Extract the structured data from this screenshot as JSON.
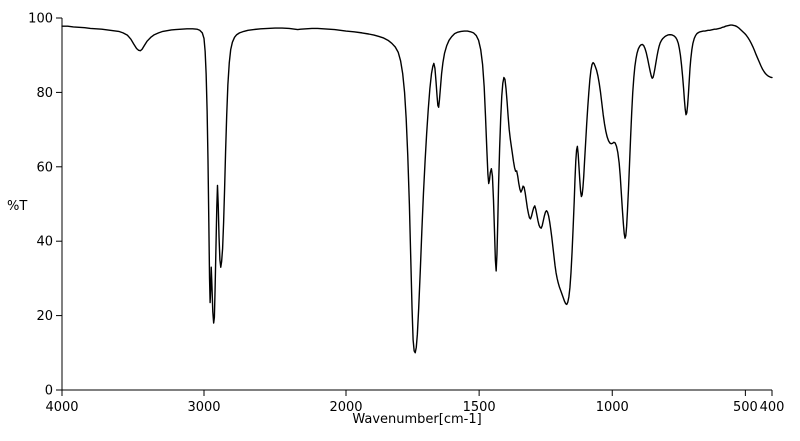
{
  "chart_data": {
    "type": "line",
    "title": "",
    "xlabel": "Wavenumber[cm-1]",
    "ylabel": "%T",
    "line_color": "#000000",
    "background_color": "#ffffff",
    "grid": false,
    "legend": "none",
    "x_axis": {
      "min": 400,
      "max": 4000,
      "reversed": true,
      "split": {
        "at": 2000,
        "left_fraction": 0.4
      },
      "ticks": [
        4000,
        3000,
        2000,
        1500,
        1000,
        500,
        400
      ]
    },
    "y_axis": {
      "min": 0,
      "max": 100,
      "ticks": [
        0,
        20,
        40,
        60,
        80,
        100
      ]
    },
    "points": [
      [
        4000,
        97.8
      ],
      [
        3960,
        97.8
      ],
      [
        3920,
        97.6
      ],
      [
        3880,
        97.5
      ],
      [
        3840,
        97.4
      ],
      [
        3800,
        97.2
      ],
      [
        3760,
        97.1
      ],
      [
        3720,
        97.0
      ],
      [
        3680,
        96.8
      ],
      [
        3640,
        96.6
      ],
      [
        3600,
        96.4
      ],
      [
        3570,
        96.0
      ],
      [
        3540,
        95.4
      ],
      [
        3515,
        94.3
      ],
      [
        3495,
        93.0
      ],
      [
        3475,
        91.8
      ],
      [
        3460,
        91.3
      ],
      [
        3448,
        91.2
      ],
      [
        3436,
        91.6
      ],
      [
        3420,
        92.6
      ],
      [
        3400,
        93.8
      ],
      [
        3375,
        94.8
      ],
      [
        3350,
        95.5
      ],
      [
        3320,
        96.0
      ],
      [
        3290,
        96.4
      ],
      [
        3260,
        96.6
      ],
      [
        3230,
        96.8
      ],
      [
        3200,
        96.9
      ],
      [
        3160,
        97.0
      ],
      [
        3120,
        97.1
      ],
      [
        3080,
        97.1
      ],
      [
        3050,
        97.0
      ],
      [
        3030,
        96.7
      ],
      [
        3012,
        96.0
      ],
      [
        3000,
        94.5
      ],
      [
        2992,
        91.0
      ],
      [
        2985,
        85.0
      ],
      [
        2978,
        75.0
      ],
      [
        2972,
        62.0
      ],
      [
        2966,
        45.0
      ],
      [
        2961,
        30.0
      ],
      [
        2957,
        23.5
      ],
      [
        2953,
        27.0
      ],
      [
        2949,
        33.0
      ],
      [
        2944,
        28.0
      ],
      [
        2938,
        21.0
      ],
      [
        2932,
        18.0
      ],
      [
        2927,
        19.5
      ],
      [
        2922,
        27.0
      ],
      [
        2916,
        38.0
      ],
      [
        2910,
        49.0
      ],
      [
        2905,
        55.0
      ],
      [
        2900,
        50.0
      ],
      [
        2894,
        41.0
      ],
      [
        2888,
        35.0
      ],
      [
        2882,
        33.0
      ],
      [
        2876,
        34.5
      ],
      [
        2869,
        38.0
      ],
      [
        2862,
        45.0
      ],
      [
        2855,
        54.0
      ],
      [
        2848,
        64.0
      ],
      [
        2840,
        74.0
      ],
      [
        2832,
        82.0
      ],
      [
        2822,
        88.0
      ],
      [
        2812,
        91.5
      ],
      [
        2800,
        93.5
      ],
      [
        2785,
        94.8
      ],
      [
        2770,
        95.5
      ],
      [
        2750,
        96.0
      ],
      [
        2720,
        96.4
      ],
      [
        2690,
        96.7
      ],
      [
        2650,
        96.9
      ],
      [
        2600,
        97.1
      ],
      [
        2550,
        97.2
      ],
      [
        2500,
        97.3
      ],
      [
        2450,
        97.3
      ],
      [
        2400,
        97.2
      ],
      [
        2360,
        97.0
      ],
      [
        2340,
        96.9
      ],
      [
        2320,
        97.0
      ],
      [
        2280,
        97.1
      ],
      [
        2240,
        97.2
      ],
      [
        2200,
        97.2
      ],
      [
        2160,
        97.1
      ],
      [
        2120,
        97.0
      ],
      [
        2080,
        96.9
      ],
      [
        2040,
        96.7
      ],
      [
        2000,
        96.5
      ],
      [
        1970,
        96.3
      ],
      [
        1940,
        96.0
      ],
      [
        1915,
        95.7
      ],
      [
        1895,
        95.4
      ],
      [
        1875,
        95.0
      ],
      [
        1858,
        94.6
      ],
      [
        1842,
        94.0
      ],
      [
        1828,
        93.2
      ],
      [
        1815,
        92.2
      ],
      [
        1804,
        90.8
      ],
      [
        1795,
        88.5
      ],
      [
        1787,
        85.0
      ],
      [
        1780,
        80.0
      ],
      [
        1774,
        73.0
      ],
      [
        1768,
        63.0
      ],
      [
        1762,
        50.0
      ],
      [
        1757,
        36.0
      ],
      [
        1752,
        22.0
      ],
      [
        1748,
        13.5
      ],
      [
        1744,
        10.5
      ],
      [
        1740,
        10.0
      ],
      [
        1736,
        11.5
      ],
      [
        1732,
        15.0
      ],
      [
        1727,
        22.0
      ],
      [
        1721,
        32.0
      ],
      [
        1715,
        43.0
      ],
      [
        1709,
        53.0
      ],
      [
        1703,
        61.5
      ],
      [
        1697,
        69.0
      ],
      [
        1691,
        75.5
      ],
      [
        1685,
        81.0
      ],
      [
        1679,
        85.0
      ],
      [
        1674,
        87.0
      ],
      [
        1670,
        87.8
      ],
      [
        1666,
        86.5
      ],
      [
        1662,
        83.0
      ],
      [
        1658,
        79.0
      ],
      [
        1655,
        76.5
      ],
      [
        1652,
        76.0
      ],
      [
        1649,
        78.0
      ],
      [
        1645,
        81.5
      ],
      [
        1641,
        85.0
      ],
      [
        1636,
        88.0
      ],
      [
        1630,
        90.5
      ],
      [
        1622,
        92.5
      ],
      [
        1613,
        94.0
      ],
      [
        1603,
        95.0
      ],
      [
        1592,
        95.8
      ],
      [
        1580,
        96.2
      ],
      [
        1568,
        96.4
      ],
      [
        1556,
        96.5
      ],
      [
        1544,
        96.5
      ],
      [
        1532,
        96.3
      ],
      [
        1521,
        96.0
      ],
      [
        1511,
        95.3
      ],
      [
        1502,
        94.0
      ],
      [
        1494,
        91.5
      ],
      [
        1487,
        87.5
      ],
      [
        1481,
        81.5
      ],
      [
        1476,
        73.5
      ],
      [
        1471,
        64.5
      ],
      [
        1467,
        58.0
      ],
      [
        1464,
        55.5
      ],
      [
        1461,
        56.5
      ],
      [
        1458,
        58.5
      ],
      [
        1454,
        59.5
      ],
      [
        1450,
        57.5
      ],
      [
        1446,
        51.0
      ],
      [
        1442,
        42.0
      ],
      [
        1439,
        35.0
      ],
      [
        1436,
        32.0
      ],
      [
        1433,
        36.5
      ],
      [
        1430,
        45.0
      ],
      [
        1427,
        55.0
      ],
      [
        1423,
        65.0
      ],
      [
        1419,
        73.0
      ],
      [
        1415,
        79.0
      ],
      [
        1411,
        82.5
      ],
      [
        1407,
        84.0
      ],
      [
        1403,
        83.5
      ],
      [
        1399,
        81.0
      ],
      [
        1395,
        77.5
      ],
      [
        1391,
        73.5
      ],
      [
        1387,
        70.0
      ],
      [
        1383,
        67.5
      ],
      [
        1379,
        65.5
      ],
      [
        1375,
        63.5
      ],
      [
        1371,
        61.5
      ],
      [
        1367,
        59.8
      ],
      [
        1363,
        58.8
      ],
      [
        1359,
        58.9
      ],
      [
        1355,
        57.5
      ],
      [
        1351,
        55.5
      ],
      [
        1347,
        54.0
      ],
      [
        1343,
        53.2
      ],
      [
        1339,
        53.8
      ],
      [
        1335,
        54.8
      ],
      [
        1331,
        54.5
      ],
      [
        1327,
        53.0
      ],
      [
        1323,
        51.0
      ],
      [
        1319,
        49.0
      ],
      [
        1315,
        47.5
      ],
      [
        1311,
        46.3
      ],
      [
        1307,
        46.0
      ],
      [
        1303,
        46.8
      ],
      [
        1299,
        48.0
      ],
      [
        1295,
        49.0
      ],
      [
        1291,
        49.5
      ],
      [
        1287,
        48.5
      ],
      [
        1283,
        47.0
      ],
      [
        1279,
        45.5
      ],
      [
        1275,
        44.3
      ],
      [
        1271,
        43.7
      ],
      [
        1267,
        43.5
      ],
      [
        1263,
        44.2
      ],
      [
        1259,
        45.5
      ],
      [
        1255,
        46.8
      ],
      [
        1251,
        47.8
      ],
      [
        1247,
        48.2
      ],
      [
        1243,
        47.8
      ],
      [
        1239,
        46.8
      ],
      [
        1235,
        45.2
      ],
      [
        1231,
        43.2
      ],
      [
        1227,
        41.0
      ],
      [
        1223,
        38.5
      ],
      [
        1219,
        36.0
      ],
      [
        1215,
        33.5
      ],
      [
        1211,
        31.5
      ],
      [
        1207,
        30.0
      ],
      [
        1203,
        28.8
      ],
      [
        1199,
        27.8
      ],
      [
        1195,
        27.0
      ],
      [
        1191,
        26.2
      ],
      [
        1187,
        25.4
      ],
      [
        1183,
        24.6
      ],
      [
        1179,
        23.8
      ],
      [
        1175,
        23.2
      ],
      [
        1171,
        23.0
      ],
      [
        1167,
        23.6
      ],
      [
        1163,
        25.0
      ],
      [
        1159,
        27.5
      ],
      [
        1155,
        31.5
      ],
      [
        1151,
        37.0
      ],
      [
        1147,
        43.5
      ],
      [
        1143,
        50.5
      ],
      [
        1140,
        56.5
      ],
      [
        1137,
        61.5
      ],
      [
        1134,
        64.5
      ],
      [
        1131,
        65.5
      ],
      [
        1128,
        63.5
      ],
      [
        1125,
        60.0
      ],
      [
        1122,
        56.5
      ],
      [
        1119,
        53.5
      ],
      [
        1116,
        52.0
      ],
      [
        1113,
        52.5
      ],
      [
        1110,
        54.5
      ],
      [
        1107,
        57.5
      ],
      [
        1104,
        61.5
      ],
      [
        1100,
        66.5
      ],
      [
        1096,
        71.5
      ],
      [
        1092,
        76.0
      ],
      [
        1088,
        80.0
      ],
      [
        1084,
        83.5
      ],
      [
        1080,
        86.0
      ],
      [
        1076,
        87.5
      ],
      [
        1072,
        88.0
      ],
      [
        1068,
        87.7
      ],
      [
        1064,
        87.0
      ],
      [
        1059,
        86.0
      ],
      [
        1054,
        84.5
      ],
      [
        1049,
        82.5
      ],
      [
        1044,
        80.0
      ],
      [
        1039,
        77.0
      ],
      [
        1034,
        74.0
      ],
      [
        1029,
        71.5
      ],
      [
        1024,
        69.5
      ],
      [
        1019,
        68.0
      ],
      [
        1014,
        67.0
      ],
      [
        1009,
        66.4
      ],
      [
        1004,
        66.2
      ],
      [
        999,
        66.3
      ],
      [
        994,
        66.6
      ],
      [
        989,
        66.4
      ],
      [
        984,
        65.5
      ],
      [
        979,
        63.8
      ],
      [
        974,
        61.0
      ],
      [
        970,
        57.5
      ],
      [
        966,
        53.0
      ],
      [
        962,
        48.5
      ],
      [
        958,
        44.5
      ],
      [
        955,
        42.0
      ],
      [
        952,
        40.8
      ],
      [
        949,
        41.5
      ],
      [
        946,
        44.0
      ],
      [
        943,
        48.0
      ],
      [
        939,
        54.0
      ],
      [
        935,
        61.0
      ],
      [
        931,
        68.0
      ],
      [
        927,
        74.5
      ],
      [
        923,
        80.0
      ],
      [
        919,
        84.0
      ],
      [
        915,
        87.0
      ],
      [
        911,
        89.0
      ],
      [
        907,
        90.5
      ],
      [
        902,
        91.7
      ],
      [
        897,
        92.4
      ],
      [
        892,
        92.8
      ],
      [
        887,
        92.9
      ],
      [
        882,
        92.6
      ],
      [
        877,
        91.8
      ],
      [
        872,
        90.6
      ],
      [
        867,
        89.0
      ],
      [
        862,
        87.2
      ],
      [
        857,
        85.5
      ],
      [
        853,
        84.3
      ],
      [
        850,
        83.8
      ],
      [
        847,
        84.0
      ],
      [
        844,
        84.8
      ],
      [
        840,
        86.3
      ],
      [
        836,
        88.0
      ],
      [
        832,
        89.7
      ],
      [
        828,
        91.2
      ],
      [
        824,
        92.4
      ],
      [
        820,
        93.3
      ],
      [
        815,
        94.0
      ],
      [
        810,
        94.5
      ],
      [
        804,
        94.9
      ],
      [
        798,
        95.2
      ],
      [
        792,
        95.4
      ],
      [
        786,
        95.5
      ],
      [
        780,
        95.5
      ],
      [
        774,
        95.4
      ],
      [
        768,
        95.2
      ],
      [
        762,
        94.8
      ],
      [
        757,
        94.2
      ],
      [
        752,
        93.2
      ],
      [
        748,
        91.8
      ],
      [
        744,
        90.0
      ],
      [
        740,
        87.5
      ],
      [
        736,
        84.5
      ],
      [
        732,
        81.0
      ],
      [
        729,
        78.0
      ],
      [
        726,
        75.5
      ],
      [
        723,
        74.0
      ],
      [
        720,
        74.5
      ],
      [
        717,
        76.5
      ],
      [
        714,
        79.5
      ],
      [
        711,
        83.0
      ],
      [
        708,
        86.5
      ],
      [
        705,
        89.0
      ],
      [
        701,
        91.5
      ],
      [
        697,
        93.2
      ],
      [
        692,
        94.5
      ],
      [
        687,
        95.3
      ],
      [
        682,
        95.8
      ],
      [
        676,
        96.1
      ],
      [
        670,
        96.3
      ],
      [
        664,
        96.4
      ],
      [
        658,
        96.5
      ],
      [
        652,
        96.5
      ],
      [
        646,
        96.6
      ],
      [
        640,
        96.7
      ],
      [
        634,
        96.7
      ],
      [
        628,
        96.8
      ],
      [
        622,
        96.9
      ],
      [
        616,
        97.0
      ],
      [
        610,
        97.0
      ],
      [
        604,
        97.1
      ],
      [
        598,
        97.2
      ],
      [
        592,
        97.3
      ],
      [
        586,
        97.5
      ],
      [
        580,
        97.6
      ],
      [
        574,
        97.8
      ],
      [
        568,
        97.9
      ],
      [
        562,
        98.0
      ],
      [
        556,
        98.1
      ],
      [
        550,
        98.1
      ],
      [
        544,
        98.0
      ],
      [
        538,
        97.9
      ],
      [
        532,
        97.7
      ],
      [
        526,
        97.4
      ],
      [
        520,
        97.0
      ],
      [
        514,
        96.6
      ],
      [
        508,
        96.2
      ],
      [
        502,
        95.8
      ],
      [
        496,
        95.3
      ],
      [
        490,
        94.7
      ],
      [
        484,
        94.0
      ],
      [
        478,
        93.2
      ],
      [
        472,
        92.3
      ],
      [
        466,
        91.3
      ],
      [
        460,
        90.2
      ],
      [
        454,
        89.2
      ],
      [
        448,
        88.2
      ],
      [
        442,
        87.2
      ],
      [
        436,
        86.3
      ],
      [
        430,
        85.6
      ],
      [
        424,
        85.0
      ],
      [
        418,
        84.6
      ],
      [
        412,
        84.3
      ],
      [
        406,
        84.1
      ],
      [
        400,
        84.0
      ]
    ]
  }
}
